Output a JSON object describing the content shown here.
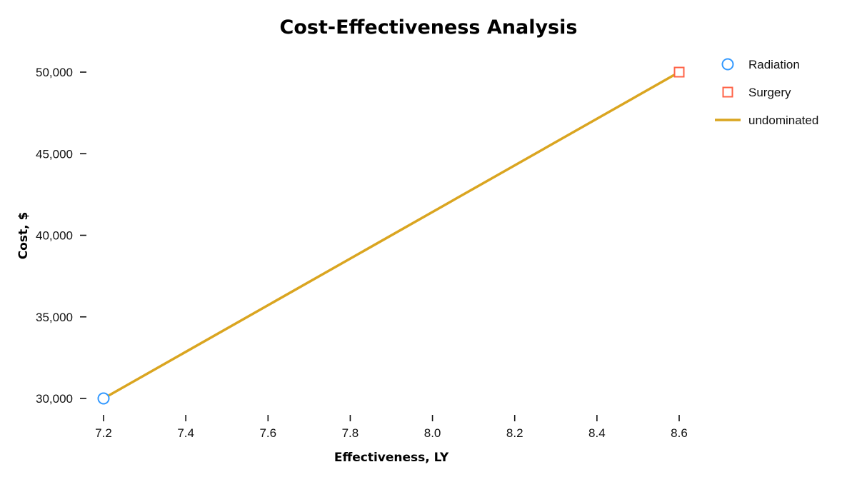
{
  "chart_data": {
    "type": "scatter",
    "title": "Cost-Effectiveness Analysis",
    "xlabel": "Effectiveness, LY",
    "ylabel": "Cost, $",
    "xlim": [
      7.2,
      8.6
    ],
    "ylim": [
      30000,
      50000
    ],
    "x_ticks": [
      "7.2",
      "7.4",
      "7.6",
      "7.8",
      "8.0",
      "8.2",
      "8.4",
      "8.6"
    ],
    "y_ticks": [
      "30,000",
      "35,000",
      "40,000",
      "45,000",
      "50,000"
    ],
    "grid": false,
    "legend_placement": "top-right",
    "series": [
      {
        "name": "Radiation",
        "marker": "circle",
        "color": "#3399ff",
        "x": [
          7.2
        ],
        "y": [
          30000
        ]
      },
      {
        "name": "Surgery",
        "marker": "square",
        "color": "#ff6347",
        "x": [
          8.6
        ],
        "y": [
          50000
        ]
      },
      {
        "name": "undominated",
        "marker": "line",
        "color": "#daa520",
        "x": [
          7.2,
          8.6
        ],
        "y": [
          30000,
          50000
        ]
      }
    ]
  }
}
